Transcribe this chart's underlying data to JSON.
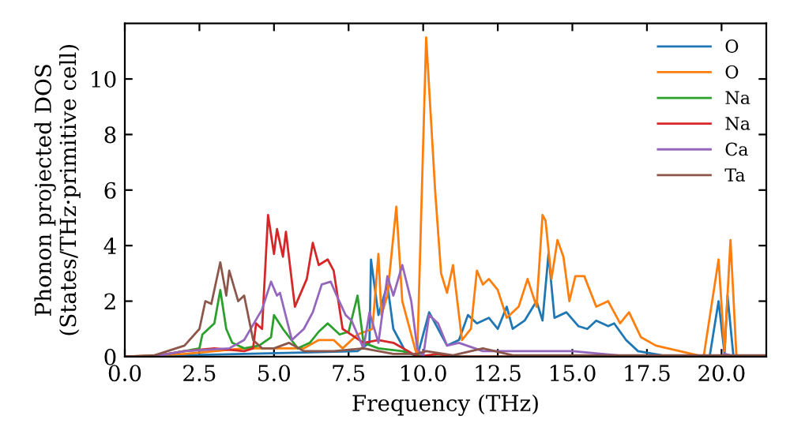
{
  "chart_data": {
    "type": "line",
    "xlabel": "Frequency (THz)",
    "ylabel": "Phonon projected DOS\n(States/THz·primitive cell)",
    "xlim": [
      0,
      21.5
    ],
    "ylim": [
      0,
      12
    ],
    "xticks": [
      {
        "value": 0,
        "label": "0.0"
      },
      {
        "value": 2.5,
        "label": "2.5"
      },
      {
        "value": 5,
        "label": "5.0"
      },
      {
        "value": 7.5,
        "label": "7.5"
      },
      {
        "value": 10,
        "label": "10.0"
      },
      {
        "value": 12.5,
        "label": "12.5"
      },
      {
        "value": 15,
        "label": "15.0"
      },
      {
        "value": 17.5,
        "label": "17.5"
      },
      {
        "value": 20,
        "label": "20.0"
      }
    ],
    "yticks": [
      0,
      2,
      4,
      6,
      8,
      10
    ],
    "grid": false,
    "legend": "top right",
    "marker": "none",
    "line_style": "solid",
    "series": [
      {
        "name": "O",
        "color": "#1f77b4",
        "x": [
          0,
          2,
          4,
          6,
          7.8,
          8.2,
          8.25,
          8.5,
          8.8,
          9.0,
          9.4,
          9.8,
          10.2,
          10.4,
          10.8,
          11.2,
          11.5,
          11.8,
          12.2,
          12.5,
          12.8,
          13.0,
          13.4,
          13.8,
          14.0,
          14.2,
          14.4,
          14.8,
          15.2,
          15.5,
          15.8,
          16.2,
          16.4,
          16.8,
          17.2,
          18,
          19.6,
          19.9,
          20.1,
          20.2,
          20.4,
          21.5
        ],
        "values": [
          0,
          0.05,
          0.1,
          0.15,
          0.2,
          0.5,
          3.5,
          1.5,
          2.6,
          1.0,
          0.2,
          0,
          1.6,
          1.2,
          0.4,
          0.6,
          1.5,
          1.2,
          1.4,
          1.0,
          1.8,
          1.0,
          1.3,
          2.0,
          1.3,
          3.7,
          1.4,
          1.6,
          1.1,
          1.0,
          1.3,
          1.1,
          1.2,
          0.6,
          0.2,
          0.05,
          0,
          2.0,
          0.1,
          2.2,
          0,
          0
        ]
      },
      {
        "name": "O",
        "color": "#ff7f0e",
        "x": [
          0,
          2,
          4,
          6,
          6.5,
          7,
          7.3,
          7.8,
          8.3,
          8.5,
          8.6,
          8.8,
          9.1,
          9.3,
          9.8,
          10.1,
          10.4,
          10.6,
          10.8,
          11.0,
          11.3,
          11.6,
          11.8,
          12.0,
          12.2,
          12.5,
          12.8,
          13.2,
          13.5,
          13.8,
          14.0,
          14.1,
          14.3,
          14.5,
          14.7,
          14.9,
          15.1,
          15.4,
          15.8,
          16.2,
          16.6,
          16.9,
          17.3,
          17.8,
          18.6,
          19.4,
          19.9,
          20.1,
          20.3,
          20.5,
          21.5
        ],
        "values": [
          0,
          0.1,
          0.3,
          0.3,
          0.6,
          0.6,
          0.3,
          0.8,
          1.0,
          3.7,
          1.5,
          2.2,
          5.4,
          2.0,
          0,
          11.5,
          6.0,
          3.0,
          2.3,
          3.3,
          0.6,
          1.0,
          3.1,
          2.6,
          2.8,
          2.4,
          1.4,
          1.8,
          2.8,
          1.8,
          5.1,
          4.9,
          2.8,
          4.2,
          3.6,
          2.0,
          2.9,
          2.9,
          1.8,
          2.0,
          1.2,
          1.6,
          0.7,
          0.4,
          0.2,
          0,
          3.5,
          0.2,
          4.2,
          0,
          0
        ]
      },
      {
        "name": "Na",
        "color": "#2ca02c",
        "x": [
          0,
          1,
          2,
          2.5,
          2.6,
          3.0,
          3.2,
          3.4,
          3.6,
          4.0,
          4.5,
          4.9,
          5.0,
          5.3,
          5.8,
          6.2,
          6.5,
          6.8,
          7.2,
          7.5,
          7.8,
          8.0,
          8.5,
          9.3,
          10,
          21.5
        ],
        "values": [
          0,
          0.02,
          0.2,
          0.3,
          0.8,
          1.2,
          2.4,
          1.0,
          0.5,
          0.3,
          0.4,
          0.7,
          1.5,
          1.0,
          0.3,
          0.5,
          0.9,
          1.2,
          0.8,
          0.9,
          2.2,
          0.5,
          0.3,
          0.2,
          0,
          0
        ]
      },
      {
        "name": "Na",
        "color": "#d62728",
        "x": [
          0,
          1,
          2,
          3,
          4.0,
          4.3,
          4.4,
          4.6,
          4.8,
          5.0,
          5.1,
          5.3,
          5.4,
          5.7,
          6.1,
          6.3,
          6.5,
          6.8,
          7.0,
          7.3,
          8.0,
          8.5,
          9.0,
          9.5,
          9.8,
          10.5,
          11,
          21.5
        ],
        "values": [
          0,
          0.02,
          0.2,
          0.3,
          0.2,
          0.3,
          1.2,
          1.0,
          5.1,
          3.7,
          4.6,
          3.6,
          4.5,
          1.8,
          2.8,
          4.1,
          3.3,
          3.5,
          3.1,
          1.0,
          0.5,
          0.6,
          0.5,
          0.2,
          0,
          0.1,
          0,
          0
        ]
      },
      {
        "name": "Ca",
        "color": "#9467bd",
        "x": [
          0,
          1,
          2,
          3.5,
          4.0,
          4.6,
          4.9,
          5.1,
          5.2,
          5.6,
          6.0,
          6.3,
          6.6,
          6.9,
          7.1,
          7.4,
          7.6,
          8.0,
          8.2,
          8.5,
          8.8,
          9.0,
          9.3,
          9.6,
          9.8,
          10.0,
          10.2,
          10.5,
          10.8,
          11.2,
          12,
          15,
          16,
          17,
          20.0,
          20.1,
          20.5,
          21.5
        ],
        "values": [
          0,
          0.02,
          0.2,
          0.3,
          0.6,
          1.7,
          2.7,
          2.2,
          2.3,
          0.6,
          1.0,
          1.6,
          2.6,
          2.7,
          2.2,
          1.5,
          1.3,
          0.3,
          1.6,
          0.5,
          2.9,
          2.2,
          3.3,
          2.0,
          0.3,
          0,
          1.5,
          1.2,
          0.4,
          0.5,
          0.2,
          0.2,
          0.1,
          0,
          0,
          0.1,
          0,
          0
        ]
      },
      {
        "name": "Ta",
        "color": "#8c564b",
        "x": [
          0,
          1,
          2,
          2.5,
          2.7,
          2.9,
          3.2,
          3.4,
          3.5,
          3.8,
          4.0,
          4.3,
          4.6,
          5.0,
          5.5,
          6,
          7,
          8,
          9,
          9.8,
          10.1,
          11,
          12,
          13,
          21.5
        ],
        "values": [
          0,
          0.05,
          0.4,
          1.0,
          2.0,
          1.9,
          3.4,
          2.2,
          3.1,
          2.0,
          2.2,
          0.6,
          0.3,
          0.3,
          0.5,
          0.2,
          0.2,
          0.3,
          0.1,
          0.1,
          0.2,
          0.05,
          0.3,
          0.05,
          0.05
        ]
      }
    ]
  }
}
